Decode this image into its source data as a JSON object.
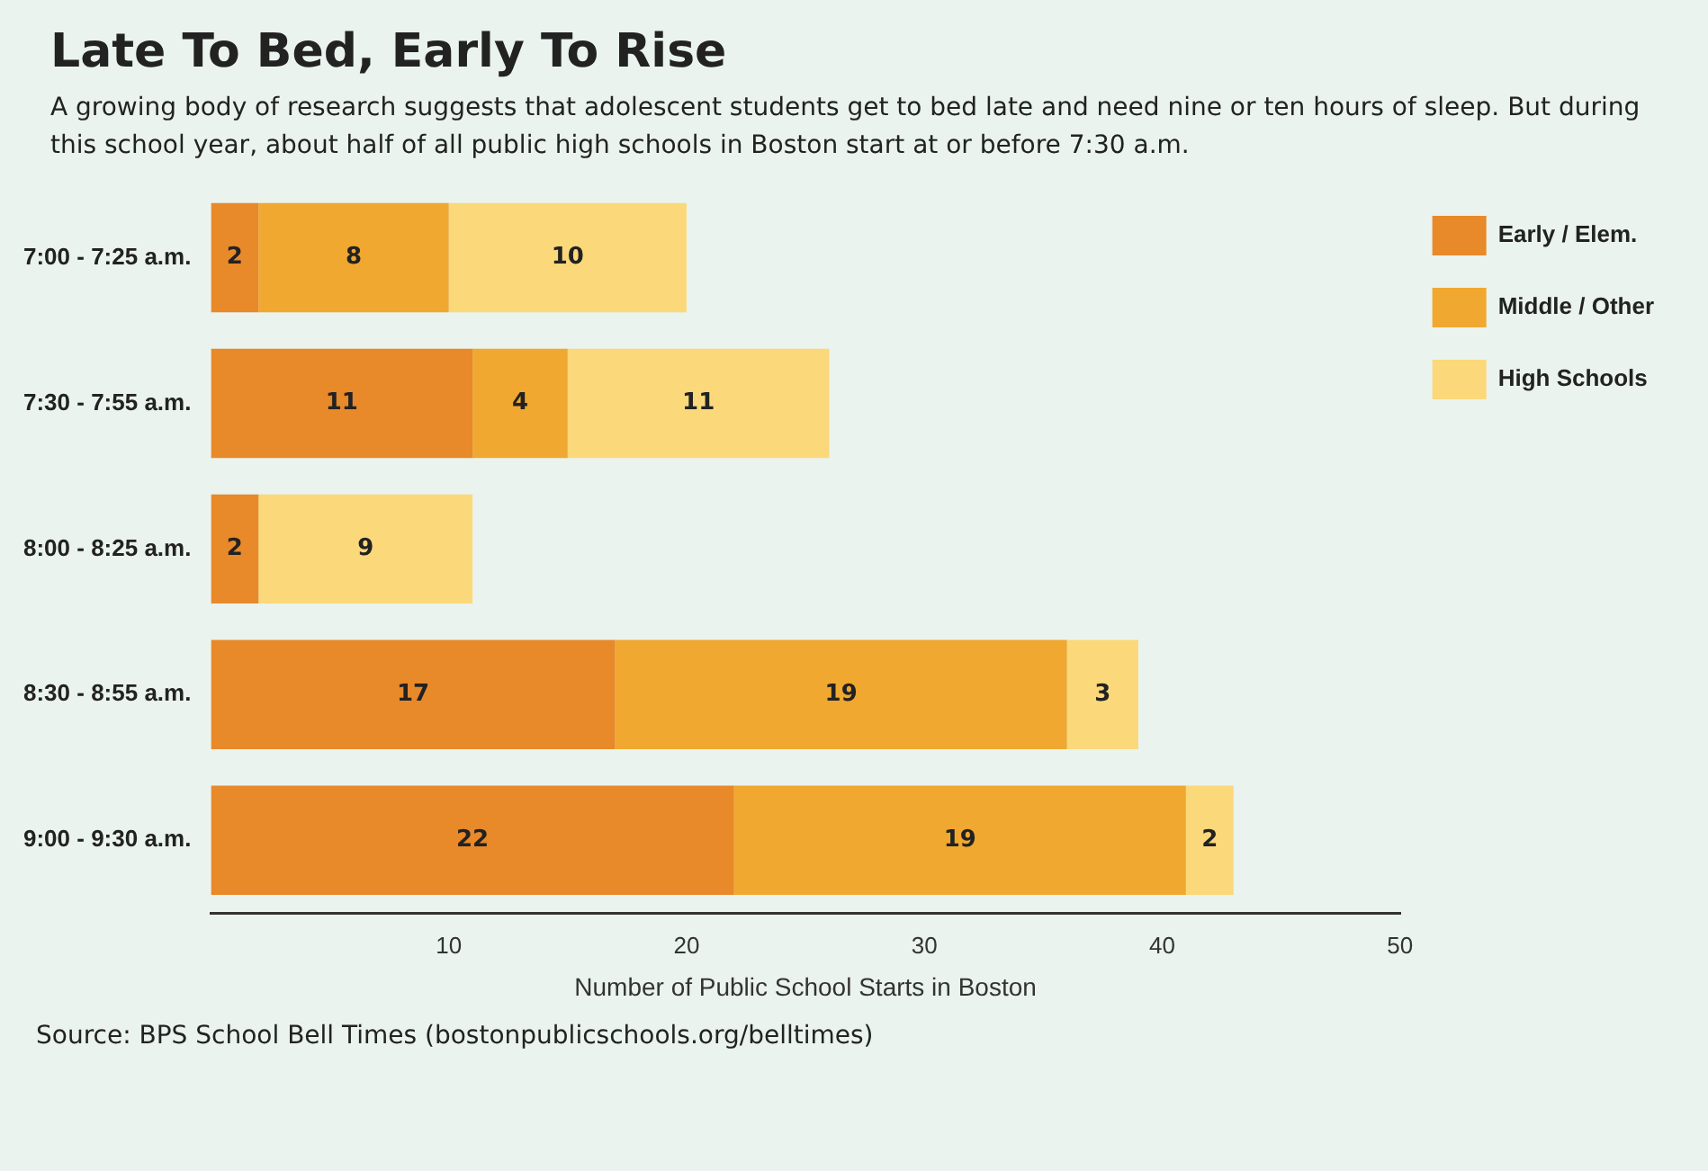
{
  "chart_data": {
    "type": "bar",
    "orientation": "horizontal",
    "stacked": true,
    "title": "Late To Bed, Early To Rise",
    "subtitle": "A growing body of research suggests that adolescent students get to bed late and need nine or ten hours of sleep. But during this school year, about half of all public high schools in Boston start at or before 7:30 a.m.",
    "xlabel": "Number of Public School Starts in Boston",
    "categories": [
      "7:00 - 7:25 a.m.",
      "7:30 - 7:55 a.m.",
      "8:00 - 8:25 a.m.",
      "8:30 - 8:55 a.m.",
      "9:00 - 9:30 a.m."
    ],
    "series": [
      {
        "name": "Early / Elem.",
        "color": "#e8892a",
        "values": [
          2,
          11,
          2,
          17,
          22
        ]
      },
      {
        "name": "Middle / Other",
        "color": "#f0a830",
        "values": [
          8,
          4,
          null,
          19,
          19
        ]
      },
      {
        "name": "High Schools",
        "color": "#fbd87a",
        "values": [
          10,
          11,
          9,
          3,
          2
        ]
      }
    ],
    "xlim": [
      0,
      50
    ],
    "xticks": [
      10,
      20,
      30,
      40,
      50
    ],
    "grid": false,
    "legend": "top right",
    "data_labels": true,
    "annotations": [
      "Source: BPS School Bell Times (bostonpublicschools.org/belltimes)"
    ]
  }
}
